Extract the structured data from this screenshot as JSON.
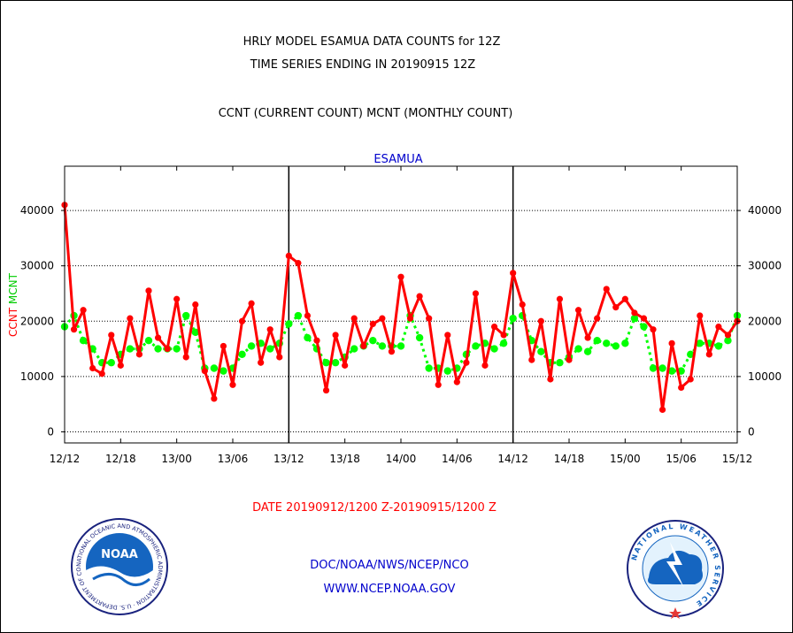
{
  "header": {
    "title_line1": "HRLY MODEL ESAMUA DATA COUNTS for 12Z",
    "title_line2": "TIME SERIES ENDING IN 20190915 12Z",
    "subtitle": "CCNT (CURRENT COUNT) MCNT (MONTHLY COUNT)"
  },
  "footer": {
    "date_range": "DATE 20190912/1200 Z-20190915/1200 Z",
    "org_line": "DOC/NOAA/NWS/NCEP/NCO",
    "url_line": "WWW.NCEP.NOAA.GOV",
    "noaa_logo_text": "NOAA",
    "noaa_ring_text": "NATIONAL OCEANIC AND ATMOSPHERIC ADMINISTRATION · U.S. DEPARTMENT OF COMMERCE",
    "nws_ring_text": "NATIONAL WEATHER SERVICE"
  },
  "colors": {
    "ccnt": "#ff0000",
    "mcnt": "#00ff00",
    "text_blue": "#0000cc",
    "text_red": "#ff0000",
    "grid": "#000000"
  },
  "chart_data": {
    "type": "line",
    "title": "ESAMUA",
    "ylabel_ccnt": "CCNT",
    "ylabel_mcnt": "MCNT",
    "ylim": [
      -2000,
      48000
    ],
    "yticks": [
      0,
      10000,
      20000,
      30000,
      40000
    ],
    "ytick_labels": [
      "0",
      "10000",
      "20000",
      "30000",
      "40000"
    ],
    "xlim_hours": [
      0,
      72
    ],
    "xticks_hours": [
      0,
      6,
      12,
      18,
      24,
      30,
      36,
      42,
      48,
      54,
      60,
      66,
      72
    ],
    "xtick_labels": [
      "12/12",
      "12/18",
      "13/00",
      "13/06",
      "13/12",
      "13/18",
      "14/00",
      "14/06",
      "14/12",
      "14/18",
      "15/00",
      "15/06",
      "15/12"
    ],
    "day_boundaries_hours": [
      24,
      48
    ],
    "grid": true,
    "series": [
      {
        "name": "CCNT",
        "values": [
          41000,
          18500,
          22000,
          11500,
          10500,
          17500,
          12000,
          20500,
          14000,
          25500,
          17000,
          15000,
          24000,
          13500,
          23000,
          11000,
          6000,
          15500,
          8500,
          20000,
          23200,
          12500,
          18500,
          13500,
          31800,
          30500,
          21000,
          16500,
          7500,
          17500,
          12000,
          20500,
          15500,
          19500,
          20500,
          14500,
          28000,
          20500,
          24500,
          20500,
          8500,
          17500,
          9000,
          12500,
          25000,
          12000,
          19000,
          17500,
          28700,
          23000,
          13000,
          20000,
          9500,
          24000,
          13000,
          22000,
          17000,
          20500,
          25800,
          22500,
          24000,
          21500,
          20500,
          18500,
          4000,
          16000,
          8000,
          9500,
          21000,
          14000,
          19000,
          17500,
          20000
        ]
      },
      {
        "name": "MCNT",
        "values": [
          19000,
          21000,
          16500,
          15000,
          12500,
          12500,
          14000,
          15000,
          15000,
          16500,
          15000,
          15000,
          15000,
          21000,
          18000,
          11500,
          11500,
          11000,
          11500,
          14000,
          15500,
          16000,
          15000,
          16000,
          19500,
          21000,
          17000,
          15000,
          12500,
          12500,
          13500,
          15000,
          15500,
          16500,
          15500,
          15500,
          15500,
          21000,
          17000,
          11500,
          11500,
          11000,
          11500,
          14000,
          15500,
          16000,
          15000,
          16000,
          20500,
          21000,
          16500,
          14500,
          12500,
          12500,
          13500,
          15000,
          14500,
          16500,
          16000,
          15500,
          16000,
          20500,
          19000,
          11500,
          11500,
          11000,
          11000,
          14000,
          16000,
          16000,
          15500,
          16500,
          21000
        ]
      }
    ]
  }
}
